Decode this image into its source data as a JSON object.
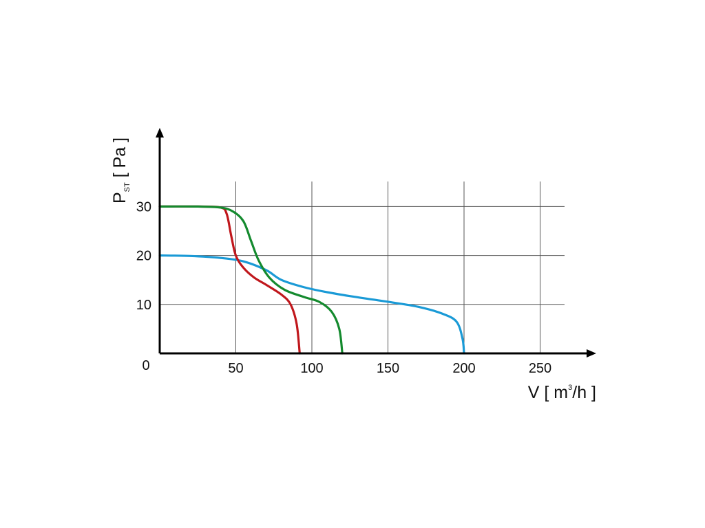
{
  "chart_data": {
    "type": "line",
    "xlabel": {
      "base": "V [ m",
      "sup": "3",
      "tail": "/h ]"
    },
    "ylabel": {
      "base": "P",
      "sub": "ST",
      "tail": " [ Pa ]"
    },
    "origin_label": "0",
    "xlim": [
      0,
      267
    ],
    "ylim": [
      0,
      30
    ],
    "x_ticks": [
      {
        "value": 50,
        "label": "50"
      },
      {
        "value": 100,
        "label": "100"
      },
      {
        "value": 150,
        "label": "150"
      },
      {
        "value": 200,
        "label": "200"
      },
      {
        "value": 250,
        "label": "250"
      }
    ],
    "y_ticks": [
      {
        "value": 10,
        "label": "10"
      },
      {
        "value": 20,
        "label": "20"
      },
      {
        "value": 30,
        "label": "30"
      }
    ],
    "grid": true,
    "series": [
      {
        "color": "#1a9ad6",
        "points": [
          [
            0,
            20
          ],
          [
            20,
            19.9
          ],
          [
            40,
            19.5
          ],
          [
            55,
            18.8
          ],
          [
            70,
            17
          ],
          [
            80,
            15
          ],
          [
            95,
            13.5
          ],
          [
            110,
            12.5
          ],
          [
            125,
            11.7
          ],
          [
            140,
            11
          ],
          [
            155,
            10.3
          ],
          [
            170,
            9.5
          ],
          [
            185,
            8.2
          ],
          [
            195,
            6.5
          ],
          [
            199,
            3
          ],
          [
            200,
            0
          ]
        ]
      },
      {
        "color": "#c0171c",
        "points": [
          [
            0,
            30
          ],
          [
            25,
            30
          ],
          [
            40,
            29.8
          ],
          [
            44,
            28.5
          ],
          [
            47,
            24
          ],
          [
            50,
            20
          ],
          [
            55,
            17.5
          ],
          [
            62,
            15.5
          ],
          [
            70,
            14
          ],
          [
            80,
            12
          ],
          [
            86,
            10
          ],
          [
            90,
            6
          ],
          [
            92,
            0
          ]
        ]
      },
      {
        "color": "#148a2e",
        "points": [
          [
            0,
            30
          ],
          [
            25,
            30
          ],
          [
            40,
            29.8
          ],
          [
            48,
            29
          ],
          [
            55,
            27
          ],
          [
            60,
            23
          ],
          [
            65,
            19
          ],
          [
            72,
            15.5
          ],
          [
            82,
            13
          ],
          [
            95,
            11.5
          ],
          [
            105,
            10.5
          ],
          [
            113,
            8.5
          ],
          [
            118,
            5
          ],
          [
            120,
            0
          ]
        ]
      }
    ]
  }
}
